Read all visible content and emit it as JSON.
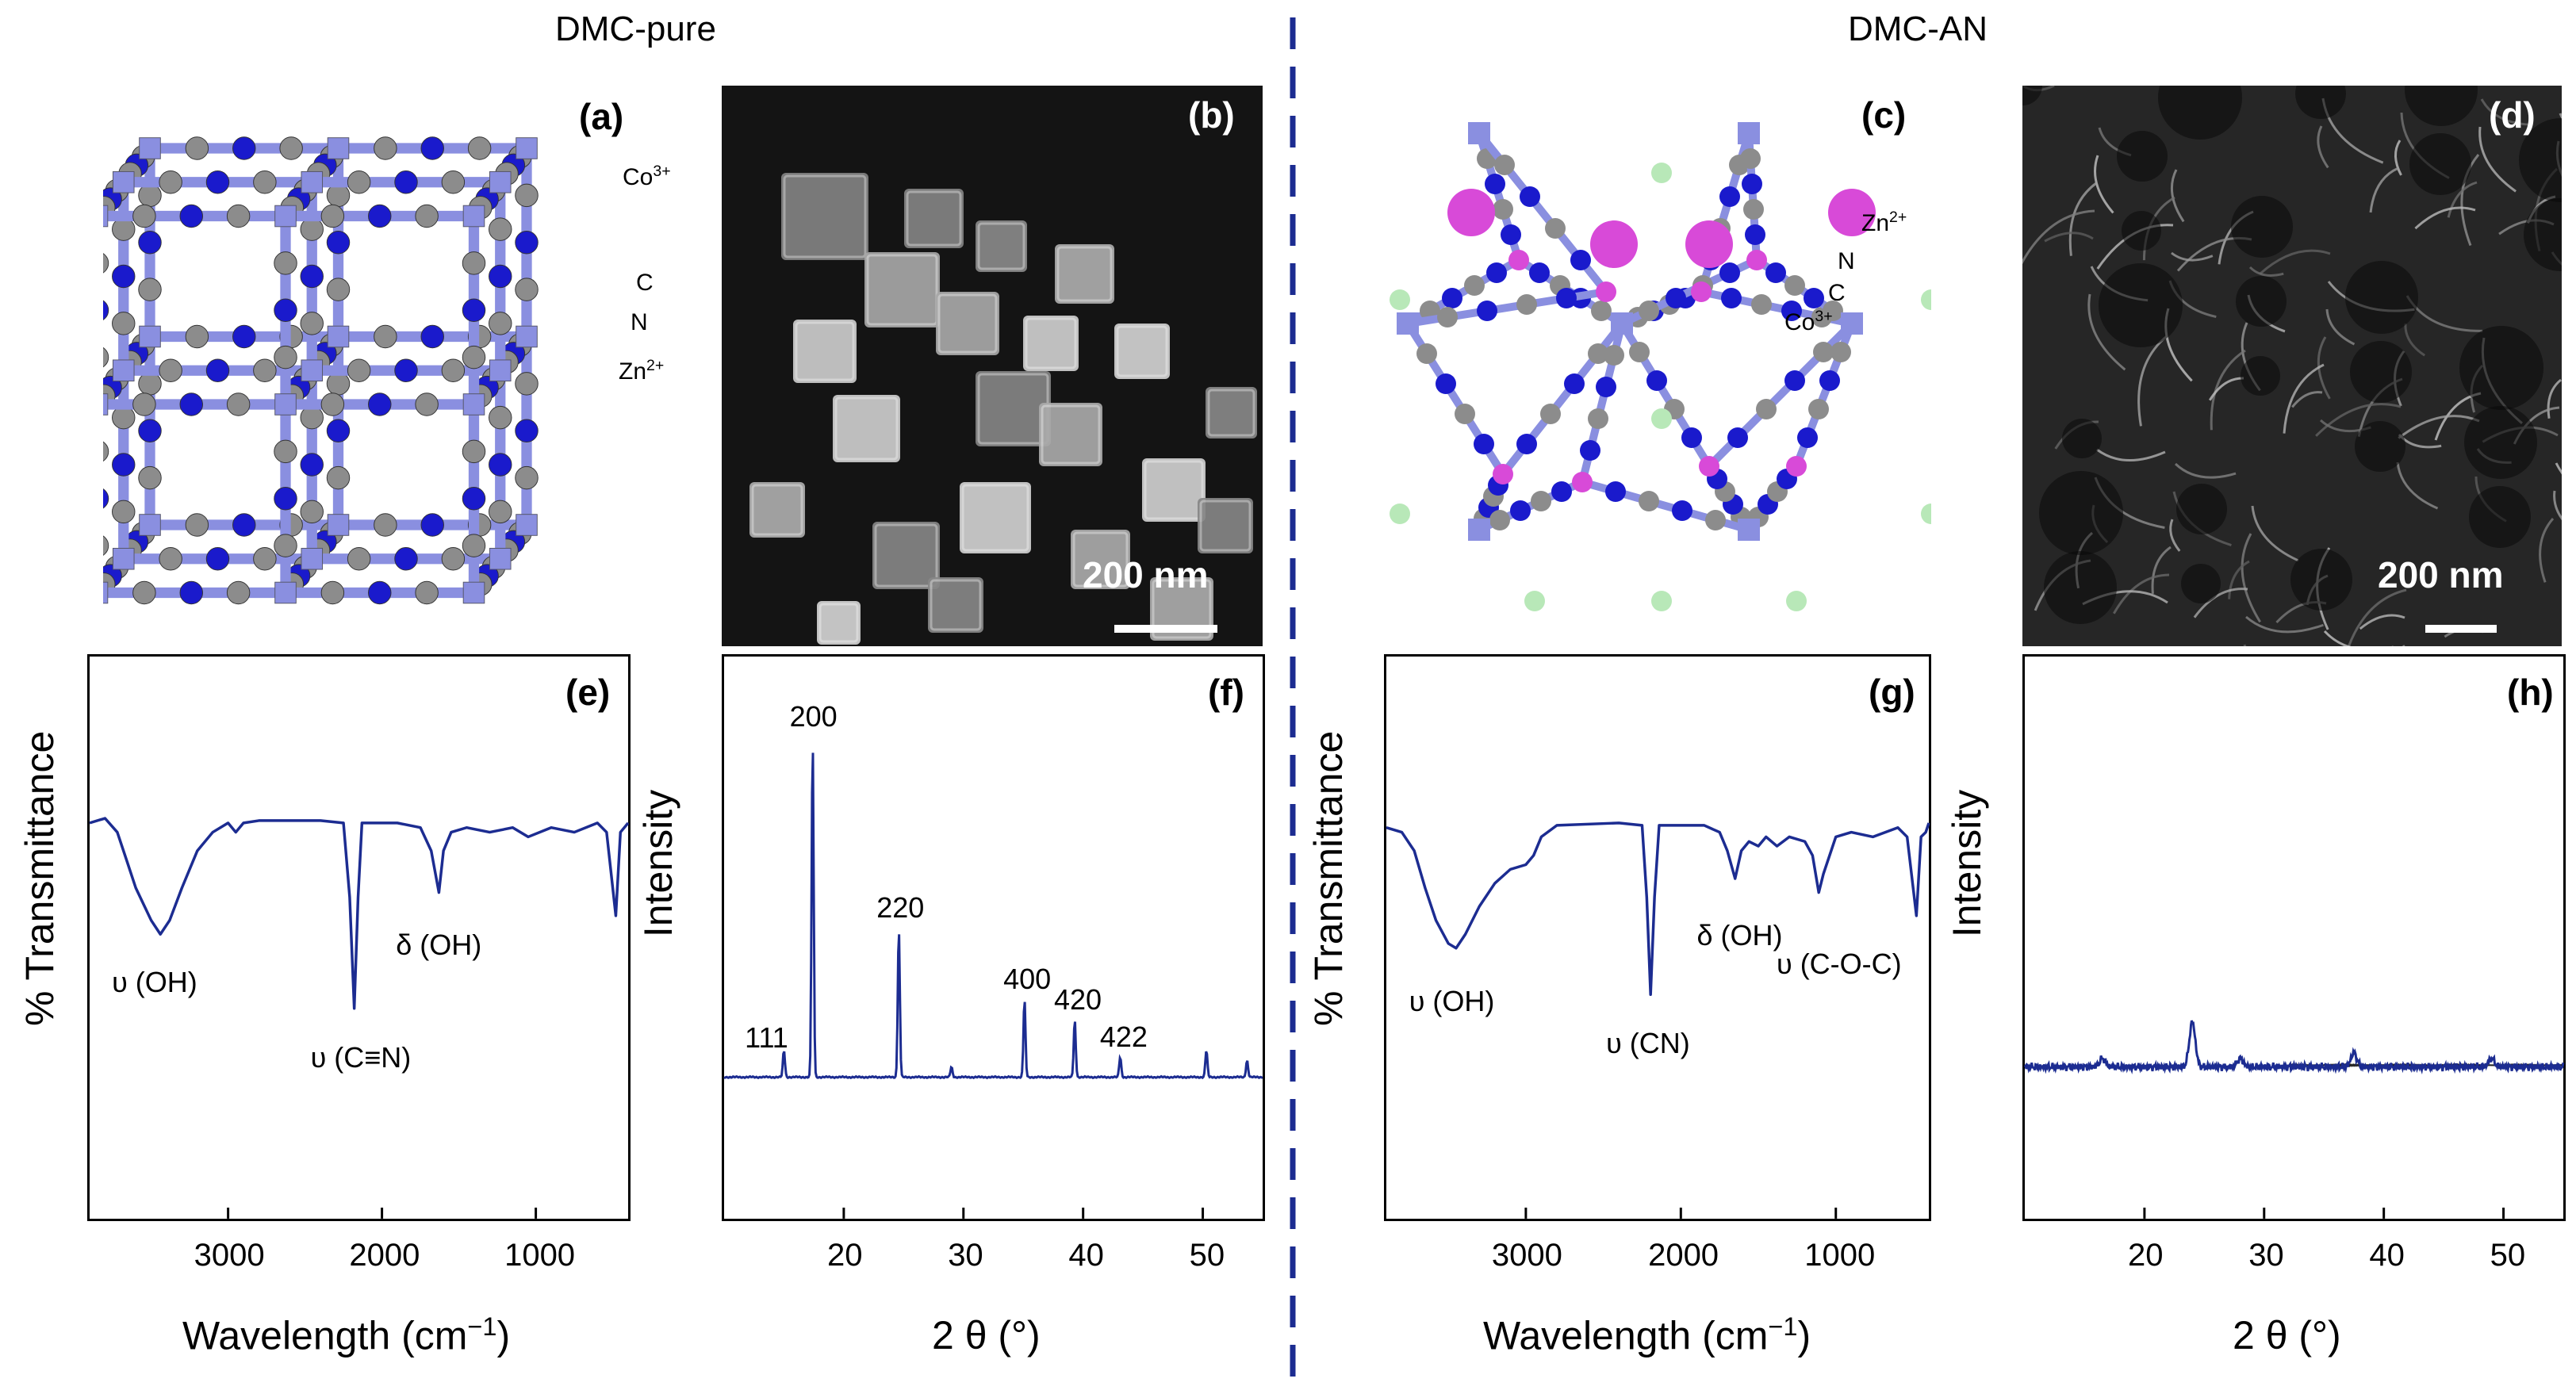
{
  "headers": {
    "left": "DMC-pure",
    "right": "DMC-AN"
  },
  "panels": {
    "a": {
      "label": "(a)",
      "atoms": {
        "co": "Co",
        "co_sup": "3+",
        "c": "C",
        "n": "N",
        "zn": "Zn",
        "zn_sup": "2+"
      }
    },
    "b": {
      "label": "(b)",
      "scale": "200 nm"
    },
    "c": {
      "label": "(c)",
      "atoms": {
        "zn": "Zn",
        "zn_sup": "2+",
        "n": "N",
        "c": "C",
        "co": "Co",
        "co_sup": "3+"
      }
    },
    "d": {
      "label": "(d)",
      "scale": "200 nm"
    },
    "e": {
      "label": "(e)"
    },
    "f": {
      "label": "(f)"
    },
    "g": {
      "label": "(g)"
    },
    "h": {
      "label": "(h)"
    }
  },
  "axes": {
    "ftir_ylabel": "% Transmittance",
    "ftir_xlabel_main": "Wavelength (cm",
    "ftir_xlabel_sup": "−1",
    "ftir_xlabel_end": ")",
    "xrd_ylabel": "Intensity",
    "xrd_xlabel": "2 θ (°)"
  },
  "colors": {
    "line": "#1c2c91",
    "divider": "#1c2c91",
    "co": "#8a8fe0",
    "n": "#1a1acc",
    "c": "#8c8c8c",
    "zn": "#d84ad8",
    "o": "#b8e8b8"
  },
  "chart_data": [
    {
      "panel": "e",
      "type": "line",
      "xlabel": "Wavelength (cm−1)",
      "ylabel": "% Transmittance",
      "xlim": [
        3900,
        400
      ],
      "ylim": [
        0,
        100
      ],
      "xticks": [
        3000,
        2000,
        1000
      ],
      "annotations": [
        {
          "text": "υ (OH)",
          "x": 3450,
          "y": 44
        },
        {
          "text": "υ (C≡N)",
          "x": 2170,
          "y": 28
        },
        {
          "text": "δ (OH)",
          "x": 1620,
          "y": 52
        }
      ],
      "series": [
        {
          "name": "DMC-pure",
          "points": [
            [
              3900,
              76
            ],
            [
              3800,
              77
            ],
            [
              3720,
              74
            ],
            [
              3660,
              68
            ],
            [
              3600,
              62
            ],
            [
              3500,
              55
            ],
            [
              3440,
              52
            ],
            [
              3380,
              55
            ],
            [
              3300,
              62
            ],
            [
              3200,
              70
            ],
            [
              3100,
              74
            ],
            [
              3000,
              76
            ],
            [
              2950,
              74
            ],
            [
              2900,
              76
            ],
            [
              2800,
              76.5
            ],
            [
              2400,
              76.5
            ],
            [
              2250,
              76
            ],
            [
              2210,
              60
            ],
            [
              2180,
              36
            ],
            [
              2155,
              60
            ],
            [
              2130,
              76
            ],
            [
              1900,
              76
            ],
            [
              1750,
              75
            ],
            [
              1680,
              70
            ],
            [
              1630,
              61
            ],
            [
              1600,
              70
            ],
            [
              1550,
              74
            ],
            [
              1450,
              75
            ],
            [
              1300,
              74
            ],
            [
              1150,
              75
            ],
            [
              1050,
              73
            ],
            [
              900,
              75
            ],
            [
              750,
              74
            ],
            [
              600,
              76
            ],
            [
              540,
              74
            ],
            [
              480,
              56
            ],
            [
              450,
              74
            ],
            [
              400,
              76
            ]
          ]
        }
      ]
    },
    {
      "panel": "f",
      "type": "line",
      "xlabel": "2 θ (°)",
      "ylabel": "Intensity",
      "xlim": [
        10,
        55
      ],
      "ylim": [
        0,
        100
      ],
      "xticks": [
        20,
        30,
        40,
        50
      ],
      "peaks": [
        {
          "label": "111",
          "x": 15.0,
          "height": 8
        },
        {
          "label": "200",
          "x": 17.4,
          "height": 100
        },
        {
          "label": "220",
          "x": 24.6,
          "height": 44
        },
        {
          "label": "400",
          "x": 35.1,
          "height": 23
        },
        {
          "label": "420",
          "x": 39.3,
          "height": 17
        },
        {
          "label": "422",
          "x": 43.1,
          "height": 6
        }
      ],
      "extra_peaks": [
        {
          "x": 29.0,
          "height": 3
        },
        {
          "x": 50.3,
          "height": 8
        },
        {
          "x": 53.7,
          "height": 5
        }
      ]
    },
    {
      "panel": "g",
      "type": "line",
      "xlabel": "Wavelength (cm−1)",
      "ylabel": "% Transmittance",
      "xlim": [
        3900,
        400
      ],
      "ylim": [
        0,
        100
      ],
      "xticks": [
        3000,
        2000,
        1000
      ],
      "annotations": [
        {
          "text": "υ (OH)",
          "x": 3450,
          "y": 40
        },
        {
          "text": "υ (CN)",
          "x": 2190,
          "y": 31
        },
        {
          "text": "δ (OH)",
          "x": 1610,
          "y": 54
        },
        {
          "text": "υ (C-O-C)",
          "x": 1100,
          "y": 48
        }
      ],
      "series": [
        {
          "name": "DMC-AN",
          "points": [
            [
              3900,
              75
            ],
            [
              3800,
              74
            ],
            [
              3720,
              70
            ],
            [
              3650,
              62
            ],
            [
              3580,
              55
            ],
            [
              3500,
              50
            ],
            [
              3450,
              49
            ],
            [
              3390,
              52
            ],
            [
              3300,
              58
            ],
            [
              3200,
              63
            ],
            [
              3100,
              66
            ],
            [
              3000,
              67
            ],
            [
              2950,
              69
            ],
            [
              2900,
              73
            ],
            [
              2800,
              75.5
            ],
            [
              2400,
              76
            ],
            [
              2250,
              75.5
            ],
            [
              2220,
              60
            ],
            [
              2195,
              39
            ],
            [
              2170,
              60
            ],
            [
              2140,
              75.5
            ],
            [
              1850,
              75.5
            ],
            [
              1750,
              74
            ],
            [
              1700,
              70
            ],
            [
              1650,
              64
            ],
            [
              1610,
              70
            ],
            [
              1560,
              72
            ],
            [
              1500,
              71
            ],
            [
              1450,
              73
            ],
            [
              1380,
              71
            ],
            [
              1300,
              73
            ],
            [
              1200,
              72
            ],
            [
              1150,
              69
            ],
            [
              1110,
              61
            ],
            [
              1080,
              65
            ],
            [
              1000,
              73
            ],
            [
              900,
              74
            ],
            [
              760,
              73
            ],
            [
              600,
              75
            ],
            [
              540,
              73
            ],
            [
              480,
              56
            ],
            [
              450,
              73
            ],
            [
              420,
              74
            ],
            [
              400,
              76
            ]
          ]
        }
      ]
    },
    {
      "panel": "h",
      "type": "line",
      "xlabel": "2 θ (°)",
      "ylabel": "Intensity",
      "xlim": [
        10,
        55
      ],
      "ylim": [
        0,
        100
      ],
      "xticks": [
        20,
        30,
        40,
        50
      ],
      "baseline": 27,
      "bumps": [
        {
          "x": 16.5,
          "height": 1.5
        },
        {
          "x": 24.0,
          "height": 8
        },
        {
          "x": 28.0,
          "height": 1.5
        },
        {
          "x": 37.5,
          "height": 2.5
        },
        {
          "x": 49.0,
          "height": 1.5
        }
      ]
    }
  ]
}
